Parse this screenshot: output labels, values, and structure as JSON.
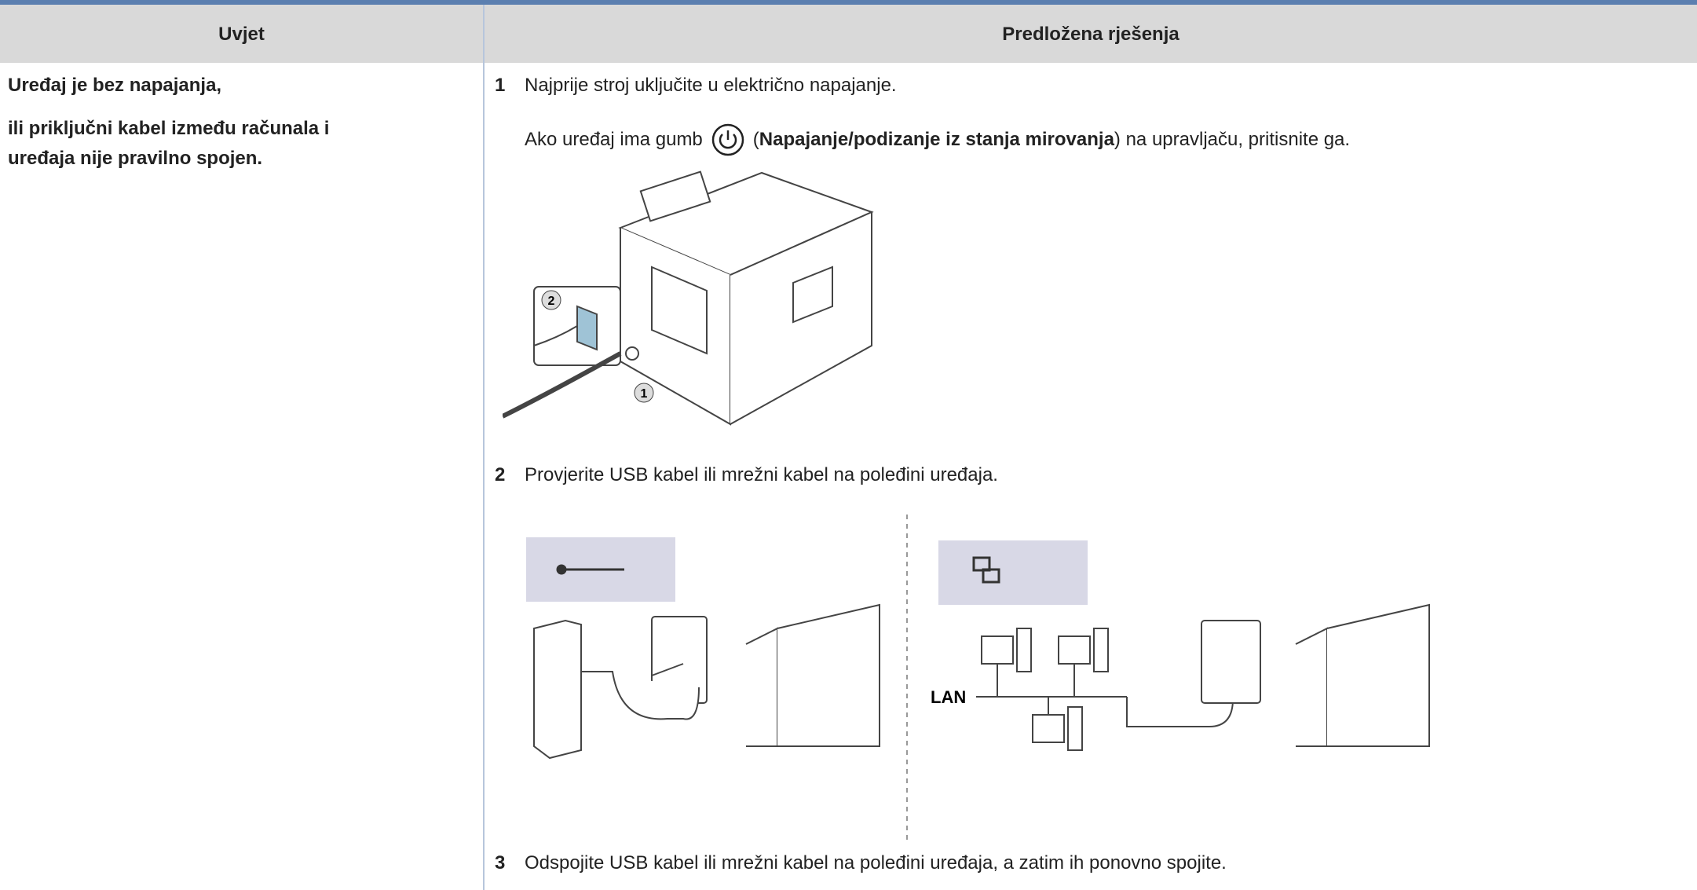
{
  "table": {
    "header": [
      "Uvjet",
      "Predložena rješenja"
    ],
    "condition": [
      "Uređaj je bez napajanja,",
      "ili priključni kabel između računala i",
      "uređaja nije pravilno spojen."
    ],
    "steps": [
      {
        "number": "1",
        "text": "Najprije stroj uključite u električno napajanje.",
        "note": {
          "before": "Ako uređaj ima gumb",
          "open": "(",
          "bold": "Napajanje/podizanje iz stanja mirovanja",
          "after": ") na upravljaču, pritisnite ga."
        }
      },
      {
        "number": "2",
        "text": "Provjerite USB kabel ili mrežni kabel na poleđini uređaja."
      },
      {
        "number": "3",
        "text": "Odspojite USB kabel ili mrežni kabel na poleđini uređaja, a zatim ih ponovno spojite."
      }
    ],
    "figures": {
      "power_callouts": [
        "2",
        "1"
      ],
      "network_label": "LAN"
    }
  }
}
